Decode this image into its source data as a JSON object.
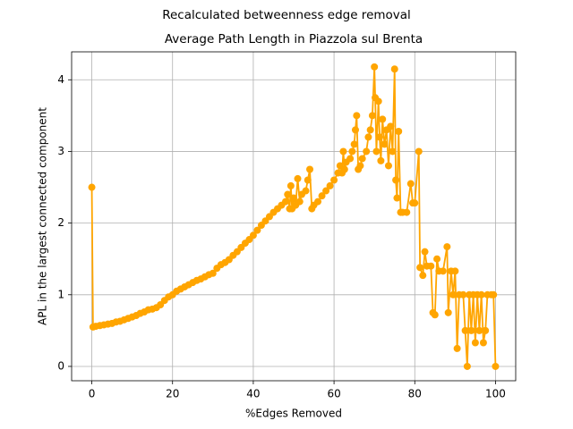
{
  "chart_data": {
    "type": "line",
    "suptitle": "Recalculated betweenness edge removal",
    "title": "Average Path Length in Piazzola sul Brenta",
    "xlabel": "%Edges Removed",
    "ylabel": "APL in the largest connected component",
    "color": "#ffa500",
    "grid": true,
    "xlim": [
      -5,
      105
    ],
    "xticks": [
      0,
      20,
      40,
      60,
      80,
      100
    ],
    "ylim": [
      -0.2,
      4.39
    ],
    "yticks": [
      0,
      1,
      2,
      3,
      4
    ],
    "x": [
      0,
      0.3,
      1,
      2,
      3,
      4,
      5,
      6,
      7,
      8,
      9,
      10,
      11,
      12,
      13,
      14,
      15,
      16,
      17,
      18,
      19,
      20,
      21,
      22,
      23,
      24,
      25,
      26,
      27,
      28,
      29,
      30,
      31,
      32,
      33,
      34,
      35,
      36,
      37,
      38,
      39,
      40,
      41,
      42,
      43,
      44,
      45,
      46,
      47,
      48,
      48.5,
      49,
      49.3,
      49.6,
      50,
      50.5,
      51,
      51.5,
      52,
      53,
      53.5,
      54,
      54.5,
      55,
      56,
      57,
      58,
      59,
      60,
      61,
      61.5,
      62,
      62.3,
      62.6,
      63,
      64,
      64.5,
      65,
      65.3,
      65.6,
      66,
      66.5,
      67,
      68,
      68.5,
      69,
      69.5,
      70,
      70.2,
      70.5,
      71,
      71.3,
      71.6,
      72,
      72.5,
      73,
      73.5,
      74,
      74.5,
      75,
      75.3,
      75.6,
      76,
      76.5,
      77,
      78,
      79,
      79.5,
      80,
      81,
      81.3,
      82,
      82.5,
      83,
      84,
      84.5,
      85,
      85.5,
      86,
      87,
      88,
      88.3,
      89,
      89.5,
      90,
      90.5,
      91,
      92,
      92.5,
      93,
      93.5,
      94,
      94.5,
      95,
      95.5,
      96,
      96.5,
      97,
      97.5,
      98,
      99,
      99.5,
      100
    ],
    "values": [
      2.5,
      0.55,
      0.56,
      0.57,
      0.58,
      0.59,
      0.6,
      0.62,
      0.63,
      0.65,
      0.67,
      0.69,
      0.71,
      0.74,
      0.76,
      0.79,
      0.8,
      0.82,
      0.86,
      0.92,
      0.97,
      1.0,
      1.05,
      1.08,
      1.11,
      1.14,
      1.17,
      1.2,
      1.22,
      1.25,
      1.28,
      1.3,
      1.37,
      1.42,
      1.45,
      1.49,
      1.55,
      1.6,
      1.66,
      1.72,
      1.77,
      1.83,
      1.9,
      1.97,
      2.03,
      2.09,
      2.15,
      2.2,
      2.25,
      2.3,
      2.4,
      2.2,
      2.52,
      2.2,
      2.35,
      2.25,
      2.62,
      2.3,
      2.4,
      2.45,
      2.6,
      2.75,
      2.2,
      2.25,
      2.3,
      2.38,
      2.45,
      2.52,
      2.6,
      2.7,
      2.8,
      2.7,
      3.0,
      2.75,
      2.85,
      2.9,
      3.0,
      3.1,
      3.3,
      3.5,
      2.75,
      2.8,
      2.9,
      3.0,
      3.2,
      3.3,
      3.5,
      4.18,
      3.75,
      3.0,
      3.7,
      3.2,
      2.87,
      3.45,
      3.1,
      3.3,
      2.8,
      3.35,
      3.0,
      4.15,
      2.6,
      2.35,
      3.28,
      2.15,
      2.15,
      2.15,
      2.55,
      2.28,
      2.28,
      3.0,
      1.38,
      1.27,
      1.6,
      1.4,
      1.4,
      0.75,
      0.72,
      1.5,
      1.33,
      1.33,
      1.67,
      0.75,
      1.33,
      1.0,
      1.33,
      0.25,
      1.0,
      1.0,
      0.5,
      0,
      1.0,
      0.5,
      1.0,
      0.33,
      1.0,
      0.5,
      1.0,
      0.33,
      0.5,
      1.0,
      1.0,
      1.0,
      0
    ]
  }
}
